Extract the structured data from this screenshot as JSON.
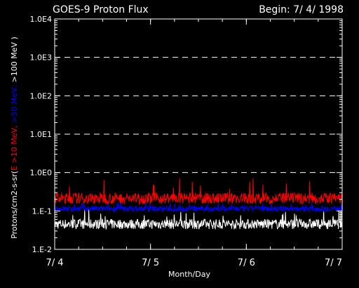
{
  "chart_data": {
    "type": "line",
    "title": "GOES-9 Proton Flux",
    "subtitle": "Begin: 7/ 4/ 1998",
    "xlabel": "Month/Day",
    "ylabel_parts": [
      "Protons/cm2-s-sr(",
      "E >10 MeV,",
      " >50 MeV,",
      " >100 MeV",
      " )"
    ],
    "ylabel_colors": [
      "#ffffff",
      "#ff0000",
      "#0000ff",
      "#ffffff",
      "#ffffff"
    ],
    "yscale": "log",
    "ylim": [
      0.01,
      10000
    ],
    "yticks": [
      {
        "value": 0.01,
        "label": "1.E-2"
      },
      {
        "value": 0.1,
        "label": "1.E-1"
      },
      {
        "value": 1,
        "label": "1.0E0"
      },
      {
        "value": 10,
        "label": "1.0E1"
      },
      {
        "value": 100,
        "label": "1.0E2"
      },
      {
        "value": 1000,
        "label": "1.0E3"
      },
      {
        "value": 10000,
        "label": "1.0E4"
      }
    ],
    "xlim": [
      4,
      7
    ],
    "xticks": [
      {
        "value": 4,
        "label": "7/ 4"
      },
      {
        "value": 5,
        "label": "7/ 5"
      },
      {
        "value": 6,
        "label": "7/ 6"
      },
      {
        "value": 7,
        "label": "7/ 7"
      }
    ],
    "grid_lines_at": [
      1,
      10,
      100,
      1000
    ],
    "series": [
      {
        "name": ">10 MeV",
        "color": "#ff0000",
        "typical": 0.18,
        "min": 0.12,
        "max": 0.75
      },
      {
        "name": ">50 MeV",
        "color": "#0000ff",
        "typical": 0.12,
        "min": 0.07,
        "max": 0.17
      },
      {
        "name": ">100 MeV",
        "color": "#ffffff",
        "typical": 0.045,
        "min": 0.022,
        "max": 0.11
      }
    ]
  }
}
